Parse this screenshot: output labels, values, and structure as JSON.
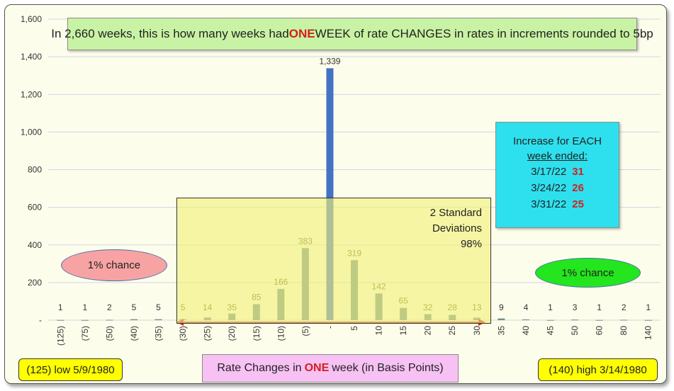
{
  "chart_data": {
    "type": "bar",
    "title": "In 2,660 weeks, this is how many weeks had ONE WEEK of rate CHANGES in rates in increments rounded to 5bp",
    "title_parts": {
      "prefix": "In 2,660 weeks, this is how many weeks had ",
      "emphasis": "ONE",
      "suffix": " WEEK of rate CHANGES in rates in increments rounded to 5bp"
    },
    "xlabel_parts": {
      "prefix": "Rate Changes in ",
      "emphasis": "ONE",
      "suffix": " week (in Basis Points)"
    },
    "ylabel": "",
    "ylim": [
      0,
      1600
    ],
    "yticks": [
      "-",
      "200",
      "400",
      "600",
      "800",
      "1,000",
      "1,200",
      "1,400",
      "1,600"
    ],
    "categories": [
      "(125)",
      "(75)",
      "(50)",
      "(40)",
      "(35)",
      "(30)",
      "(25)",
      "(20)",
      "(15)",
      "(10)",
      "(5)",
      "-",
      "5",
      "10",
      "15",
      "20",
      "25",
      "30",
      "35",
      "40",
      "45",
      "50",
      "60",
      "80",
      "140"
    ],
    "values": [
      1,
      1,
      2,
      5,
      5,
      5,
      14,
      35,
      85,
      166,
      383,
      1339,
      319,
      142,
      65,
      32,
      28,
      13,
      9,
      4,
      1,
      3,
      1,
      2,
      1
    ],
    "value_labels": [
      "1",
      "1",
      "2",
      "5",
      "5",
      "5",
      "14",
      "35",
      "85",
      "166",
      "383",
      "1,339",
      "319",
      "142",
      "65",
      "32",
      "28",
      "13",
      "9",
      "4",
      "1",
      "3",
      "1",
      "2",
      "1"
    ],
    "grid": true,
    "legend": "none"
  },
  "annotations": {
    "sd_line1": "2 Standard",
    "sd_line2": "Deviations",
    "sd_line3": "98%",
    "increase_heading": "Increase for EACH",
    "increase_subheading": "week ended:",
    "increase_rows": [
      {
        "date": "3/17/22",
        "value": "31"
      },
      {
        "date": "3/24/22",
        "value": "26"
      },
      {
        "date": "3/31/22",
        "value": "25"
      }
    ],
    "left_chance": "1% chance",
    "right_chance": "1% chance",
    "low_note": "(125) low 5/9/1980",
    "high_note": "(140) high 3/14/1980"
  },
  "colors": {
    "bar_default": "#6f8f8f",
    "bar_peak": "#4472c4",
    "arrow": "#d31f1f",
    "label_in_range": "#6b6b1a",
    "label_out_range": "#333333"
  }
}
